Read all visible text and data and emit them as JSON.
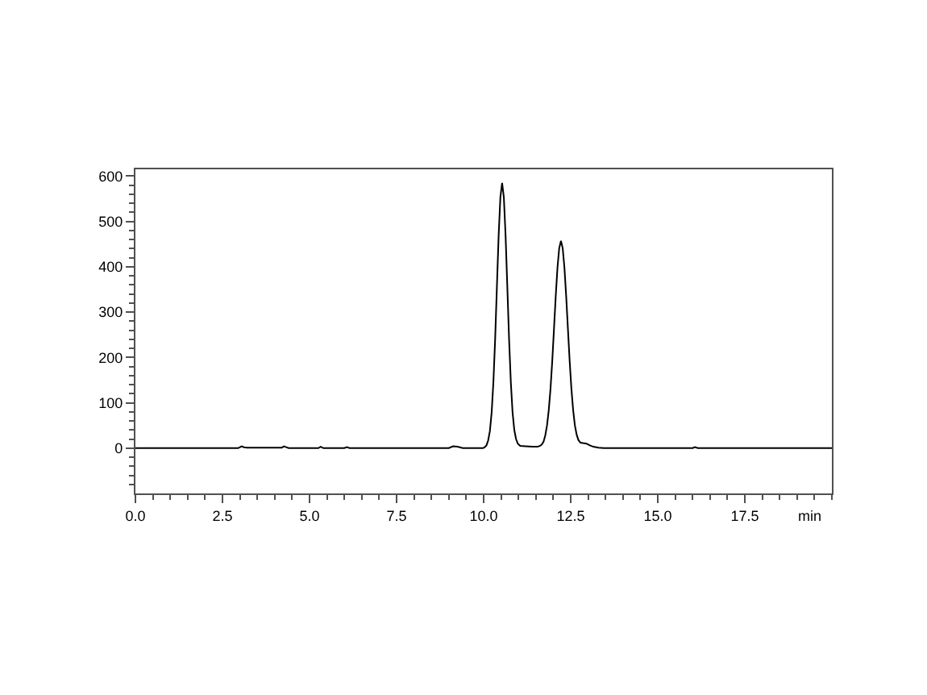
{
  "chart_data": {
    "type": "line",
    "xlabel": "min",
    "xlim": [
      0,
      20
    ],
    "ylim": [
      -100,
      615
    ],
    "xticks": [
      {
        "value": 0,
        "label": "0.0"
      },
      {
        "value": 0.5,
        "label": null
      },
      {
        "value": 1,
        "label": null
      },
      {
        "value": 1.5,
        "label": null
      },
      {
        "value": 2,
        "label": null
      },
      {
        "value": 2.5,
        "label": "2.5"
      },
      {
        "value": 3,
        "label": null
      },
      {
        "value": 3.5,
        "label": null
      },
      {
        "value": 4,
        "label": null
      },
      {
        "value": 4.5,
        "label": null
      },
      {
        "value": 5,
        "label": "5.0"
      },
      {
        "value": 5.5,
        "label": null
      },
      {
        "value": 6,
        "label": null
      },
      {
        "value": 6.5,
        "label": null
      },
      {
        "value": 7,
        "label": null
      },
      {
        "value": 7.5,
        "label": "7.5"
      },
      {
        "value": 8,
        "label": null
      },
      {
        "value": 8.5,
        "label": null
      },
      {
        "value": 9,
        "label": null
      },
      {
        "value": 9.5,
        "label": null
      },
      {
        "value": 10,
        "label": "10.0"
      },
      {
        "value": 10.5,
        "label": null
      },
      {
        "value": 11,
        "label": null
      },
      {
        "value": 11.5,
        "label": null
      },
      {
        "value": 12,
        "label": null
      },
      {
        "value": 12.5,
        "label": "12.5"
      },
      {
        "value": 13,
        "label": null
      },
      {
        "value": 13.5,
        "label": null
      },
      {
        "value": 14,
        "label": null
      },
      {
        "value": 14.5,
        "label": null
      },
      {
        "value": 15,
        "label": "15.0"
      },
      {
        "value": 15.5,
        "label": null
      },
      {
        "value": 16,
        "label": null
      },
      {
        "value": 16.5,
        "label": null
      },
      {
        "value": 17,
        "label": null
      },
      {
        "value": 17.5,
        "label": "17.5"
      },
      {
        "value": 18,
        "label": null
      },
      {
        "value": 18.5,
        "label": null
      },
      {
        "value": 19,
        "label": null
      },
      {
        "value": 19.5,
        "label": null
      },
      {
        "value": 20,
        "label": null
      }
    ],
    "yticks": [
      {
        "value": -80,
        "label": null
      },
      {
        "value": -60,
        "label": null
      },
      {
        "value": -40,
        "label": null
      },
      {
        "value": -20,
        "label": null
      },
      0,
      {
        "value": 20,
        "label": null
      },
      {
        "value": 40,
        "label": null
      },
      {
        "value": 60,
        "label": null
      },
      {
        "value": 80,
        "label": null
      },
      100,
      {
        "value": 120,
        "label": null
      },
      {
        "value": 140,
        "label": null
      },
      {
        "value": 160,
        "label": null
      },
      {
        "value": 180,
        "label": null
      },
      200,
      {
        "value": 220,
        "label": null
      },
      {
        "value": 240,
        "label": null
      },
      {
        "value": 260,
        "label": null
      },
      {
        "value": 280,
        "label": null
      },
      300,
      {
        "value": 320,
        "label": null
      },
      {
        "value": 340,
        "label": null
      },
      {
        "value": 360,
        "label": null
      },
      {
        "value": 380,
        "label": null
      },
      400,
      {
        "value": 420,
        "label": null
      },
      {
        "value": 440,
        "label": null
      },
      {
        "value": 460,
        "label": null
      },
      {
        "value": 480,
        "label": null
      },
      500,
      {
        "value": 520,
        "label": null
      },
      {
        "value": 540,
        "label": null
      },
      {
        "value": 560,
        "label": null
      },
      {
        "value": 580,
        "label": null
      },
      600
    ],
    "series": [
      {
        "color": "#000000",
        "x": [
          0,
          2.95,
          3.05,
          3.12,
          3.2,
          3.3,
          4.2,
          4.27,
          4.33,
          4.4,
          5.25,
          5.32,
          5.4,
          6.0,
          6.07,
          6.15,
          9.0,
          9.12,
          9.25,
          9.4,
          9.98,
          10.03,
          10.08,
          10.13,
          10.18,
          10.23,
          10.28,
          10.33,
          10.38,
          10.43,
          10.48,
          10.53,
          10.58,
          10.63,
          10.68,
          10.73,
          10.78,
          10.83,
          10.88,
          10.93,
          10.98,
          11.05,
          11.2,
          11.4,
          11.55,
          11.62,
          11.67,
          11.72,
          11.77,
          11.82,
          11.87,
          11.92,
          11.97,
          12.02,
          12.07,
          12.12,
          12.17,
          12.22,
          12.27,
          12.32,
          12.37,
          12.42,
          12.47,
          12.52,
          12.57,
          12.62,
          12.67,
          12.72,
          12.78,
          12.85,
          12.95,
          13.05,
          13.15,
          13.3,
          13.45,
          16.0,
          16.07,
          16.15,
          20
        ],
        "values": [
          0,
          0,
          4,
          2,
          1,
          1,
          1,
          4,
          2,
          0,
          0,
          3,
          0,
          0,
          2,
          0,
          0,
          4,
          3,
          0,
          0,
          2,
          6,
          17,
          38,
          79,
          146,
          240,
          355,
          468,
          553,
          585,
          553,
          468,
          355,
          240,
          146,
          79,
          40,
          20,
          10,
          5,
          4,
          3,
          3,
          5,
          8,
          14,
          28,
          50,
          84,
          131,
          192,
          263,
          335,
          398,
          441,
          457,
          441,
          398,
          335,
          263,
          192,
          131,
          84,
          50,
          30,
          18,
          12,
          11,
          10,
          6,
          3,
          1,
          0,
          0,
          2,
          0,
          0
        ]
      }
    ]
  }
}
